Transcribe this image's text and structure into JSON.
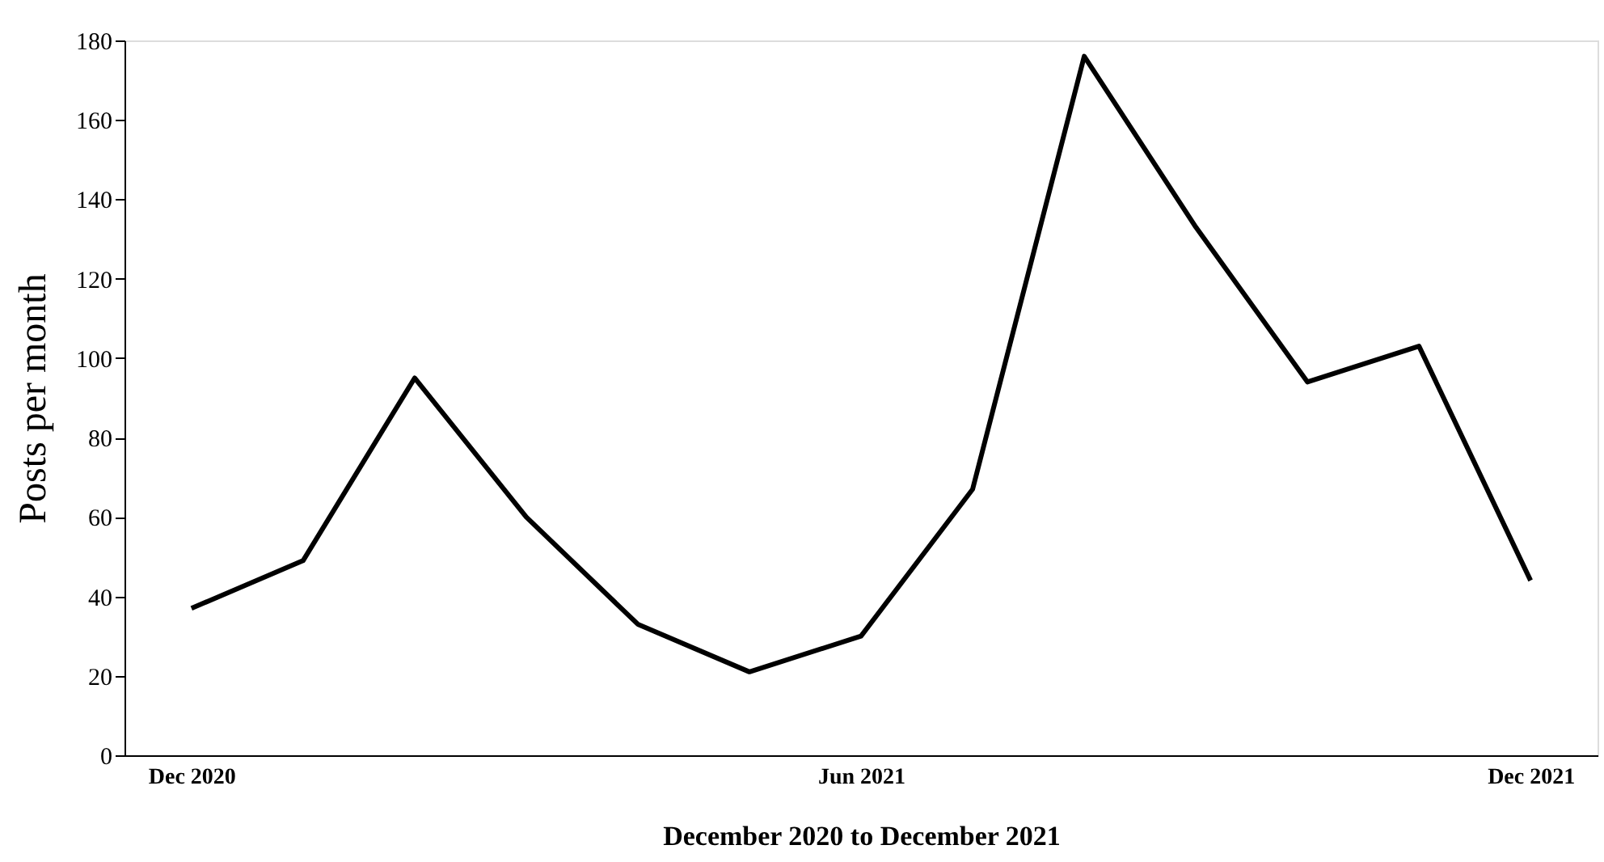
{
  "chart_data": {
    "type": "line",
    "xlabel": "December 2020 to December 2021",
    "ylabel": "Posts per month",
    "categories": [
      "Dec 2020",
      null,
      null,
      null,
      null,
      null,
      "Jun 2021",
      null,
      null,
      null,
      null,
      null,
      "Dec 2021"
    ],
    "series": [
      {
        "color": "#000000",
        "values": [
          37,
          49,
          95,
          60,
          33,
          21,
          30,
          67,
          176,
          133,
          94,
          103,
          44
        ]
      }
    ],
    "ylim": [
      0,
      180
    ],
    "yticks": [
      0,
      20,
      40,
      60,
      80,
      100,
      120,
      140,
      160,
      180
    ],
    "grid": false,
    "marker": "none",
    "line_style": "solid"
  }
}
